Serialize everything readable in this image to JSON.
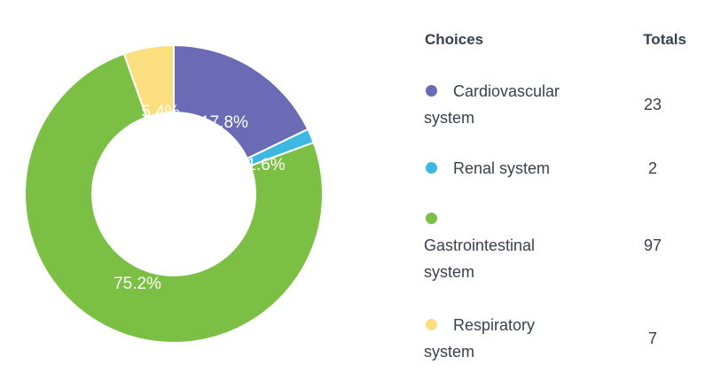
{
  "chart_data": {
    "type": "pie",
    "donut": true,
    "categories": [
      "Cardiovascular system",
      "Renal system",
      "Gastrointestinal system",
      "Respiratory system"
    ],
    "values": [
      23,
      2,
      97,
      7
    ],
    "percent_labels": [
      "17.8%",
      "1.6%",
      "75.2%",
      "5.4%"
    ],
    "colors": [
      "#6b6bb5",
      "#3db8e0",
      "#7bbf44",
      "#fbdf7e"
    ],
    "legend_position": "right"
  },
  "legend": {
    "header_choices": "Choices",
    "header_totals": "Totals",
    "items": [
      {
        "label_line1": "Cardiovascular",
        "label_line2": "system",
        "total": "23",
        "color": "#6b6bb5"
      },
      {
        "label_line1": "Renal system",
        "label_line2": "",
        "total": "2",
        "color": "#3db8e0"
      },
      {
        "label_line1": "",
        "label_line2": "Gastrointestinal system",
        "total": "97",
        "color": "#7bbf44"
      },
      {
        "label_line1": "Respiratory",
        "label_line2": "system",
        "total": "7",
        "color": "#fbdf7e"
      }
    ]
  }
}
